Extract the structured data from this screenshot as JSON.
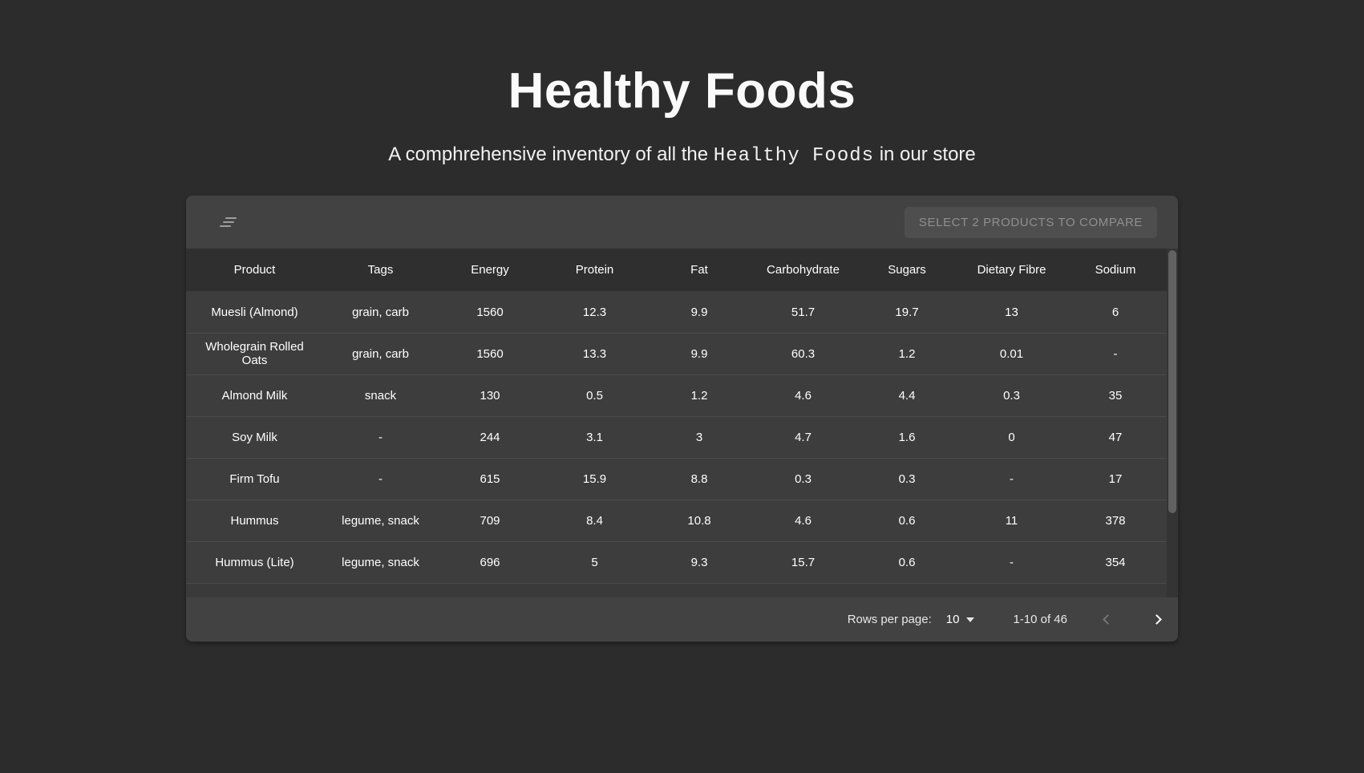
{
  "page": {
    "title": "Healthy Foods",
    "subtitle_prefix": "A comphrehensive inventory of all the ",
    "subtitle_mono": "Healthy Foods",
    "subtitle_suffix": " in our store"
  },
  "toolbar": {
    "filter_icon": "filter-list-icon",
    "compare_button_label": "SELECT 2 PRODUCTS TO COMPARE",
    "compare_button_state": "disabled"
  },
  "table": {
    "columns": [
      "Product",
      "Tags",
      "Energy",
      "Protein",
      "Fat",
      "Carbohydrate",
      "Sugars",
      "Dietary Fibre",
      "Sodium"
    ],
    "rows": [
      [
        "Muesli (Almond)",
        "grain, carb",
        "1560",
        "12.3",
        "9.9",
        "51.7",
        "19.7",
        "13",
        "6"
      ],
      [
        "Wholegrain Rolled Oats",
        "grain, carb",
        "1560",
        "13.3",
        "9.9",
        "60.3",
        "1.2",
        "0.01",
        "-"
      ],
      [
        "Almond Milk",
        "snack",
        "130",
        "0.5",
        "1.2",
        "4.6",
        "4.4",
        "0.3",
        "35"
      ],
      [
        "Soy Milk",
        "-",
        "244",
        "3.1",
        "3",
        "4.7",
        "1.6",
        "0",
        "47"
      ],
      [
        "Firm Tofu",
        "-",
        "615",
        "15.9",
        "8.8",
        "0.3",
        "0.3",
        "-",
        "17"
      ],
      [
        "Hummus",
        "legume, snack",
        "709",
        "8.4",
        "10.8",
        "4.6",
        "0.6",
        "11",
        "378"
      ],
      [
        "Hummus (Lite)",
        "legume, snack",
        "696",
        "5",
        "9.3",
        "15.7",
        "0.6",
        "-",
        "354"
      ]
    ]
  },
  "pagination": {
    "rows_per_page_label": "Rows per page:",
    "rows_per_page_value": "10",
    "range_label": "1-10 of 46",
    "prev_icon": "chevron-left-icon",
    "next_icon": "chevron-right-icon",
    "prev_state": "disabled",
    "next_state": "enabled"
  },
  "colors": {
    "page_background": "#2c2c2c",
    "card_background": "#424242",
    "header_background": "#2f2f2f",
    "row_background": "#3d3d3d",
    "disabled_text": "#8f8f8f",
    "primary_text": "#ffffff"
  }
}
